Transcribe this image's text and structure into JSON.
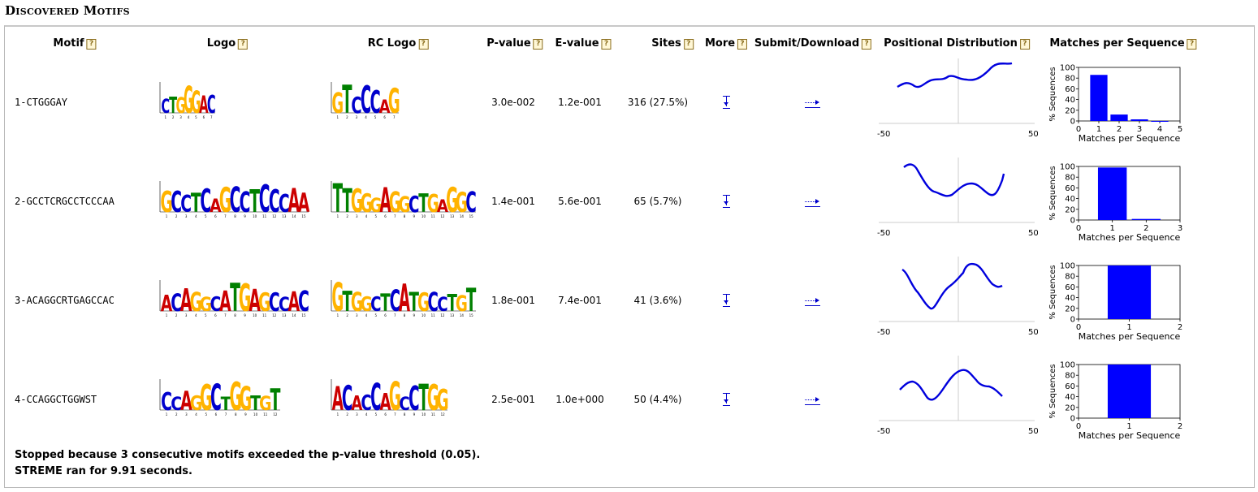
{
  "section_title": "Discovered Motifs",
  "headers": {
    "motif": "Motif",
    "logo": "Logo",
    "rc_logo": "RC Logo",
    "pvalue": "P-value",
    "evalue": "E-value",
    "sites": "Sites",
    "more": "More",
    "submit": "Submit/Download",
    "posdist": "Positional Distribution",
    "mps": "Matches per Sequence",
    "help_icon": "?"
  },
  "motifs": [
    {
      "name": "1-CTGGGAY",
      "pvalue": "3.0e-002",
      "evalue": "1.2e-001",
      "sites": "316 (27.5%)",
      "logo": "CTGGGAC",
      "rc_logo": "GTCCCAG",
      "pd_min": "-50",
      "pd_max": "50",
      "mps": {
        "x_ticks": [
          "0",
          "1",
          "2",
          "3",
          "4",
          "5"
        ],
        "values": [
          86,
          12,
          3,
          0
        ],
        "xmax": 5
      }
    },
    {
      "name": "2-GCCTCRGCCTCCCAA",
      "pvalue": "1.4e-001",
      "evalue": "5.6e-001",
      "sites": "65 (5.7%)",
      "logo": "GCCTCAGCCTCCCAA",
      "rc_logo": "TTGGGAGGCTGAGGC",
      "pd_min": "-50",
      "pd_max": "50",
      "mps": {
        "x_ticks": [
          "0",
          "1",
          "2",
          "3"
        ],
        "values": [
          98,
          2
        ],
        "xmax": 3
      }
    },
    {
      "name": "3-ACAGGCRTGAGCCAC",
      "pvalue": "1.8e-001",
      "evalue": "7.4e-001",
      "sites": "41 (3.6%)",
      "logo": "ACAGGCATGAGCCAC",
      "rc_logo": "GTGGCTCATGCCTGT",
      "pd_min": "-50",
      "pd_max": "50",
      "mps": {
        "x_ticks": [
          "0",
          "1",
          "2"
        ],
        "values": [
          100
        ],
        "xmax": 2
      }
    },
    {
      "name": "4-CCAGGCTGGWST",
      "pvalue": "2.5e-001",
      "evalue": "1.0e+000",
      "sites": "50 (4.4%)",
      "logo": "CCAGGCTGGTGT",
      "rc_logo": "ACACCAGCCTGG",
      "pd_min": "-50",
      "pd_max": "50",
      "mps": {
        "x_ticks": [
          "0",
          "1",
          "2"
        ],
        "values": [
          100
        ],
        "xmax": 2
      }
    }
  ],
  "mps_axis": {
    "ylabel": "% Sequences",
    "xlabel": "Matches per Sequence",
    "y_ticks": [
      "0",
      "20",
      "40",
      "60",
      "80",
      "100"
    ]
  },
  "footer": {
    "line1": "Stopped because 3 consecutive motifs exceeded the p-value threshold (0.05).",
    "line2": "STREME ran for 9.91 seconds."
  },
  "colors": {
    "A": "#cc0000",
    "C": "#0000cc",
    "G": "#ffb300",
    "T": "#008000",
    "link": "#0000cc",
    "bar": "#0000ff"
  }
}
